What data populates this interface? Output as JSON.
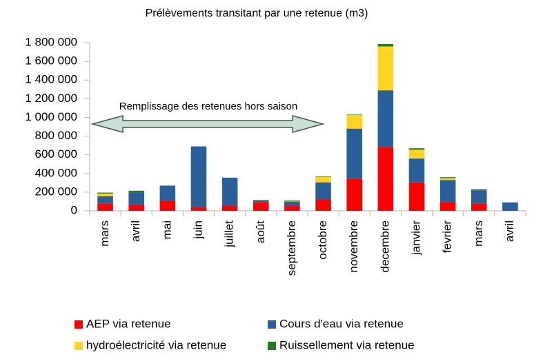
{
  "chart_data": {
    "type": "bar",
    "stacked": true,
    "title": "Prélèvements transitant par une retenue (m3)",
    "annotation": "Remplissage des retenues hors saison",
    "categories": [
      "mars",
      "avril",
      "mai",
      "juin",
      "juillet",
      "août",
      "septembre",
      "octobre",
      "novembre",
      "decembre",
      "janvier",
      "fevrier",
      "mars",
      "avril"
    ],
    "series": [
      {
        "name": "AEP via retenue",
        "color": "#ff0000",
        "values": [
          80000,
          65000,
          110000,
          40000,
          55000,
          90000,
          55000,
          125000,
          345000,
          680000,
          305000,
          95000,
          80000,
          0
        ]
      },
      {
        "name": "Cours d'eau via retenue",
        "color": "#2a6099",
        "values": [
          75000,
          130000,
          160000,
          650000,
          300000,
          20000,
          45000,
          180000,
          535000,
          610000,
          255000,
          235000,
          140000,
          90000
        ]
      },
      {
        "name": "hydroélectricité via retenue",
        "color": "#ffd320",
        "values": [
          30000,
          0,
          0,
          0,
          0,
          0,
          10000,
          60000,
          145000,
          470000,
          95000,
          20000,
          0,
          0
        ]
      },
      {
        "name": "Ruissellement via retenue",
        "color": "#1e7b1e",
        "values": [
          10000,
          20000,
          0,
          0,
          0,
          5000,
          5000,
          5000,
          5000,
          25000,
          15000,
          10000,
          10000,
          0
        ]
      }
    ],
    "ylim": [
      0,
      1800000
    ],
    "yticks": [
      0,
      {
        "value": 200000,
        "label": "200 000"
      },
      {
        "value": 400000,
        "label": "400 000"
      },
      {
        "value": 600000,
        "label": "600 000"
      },
      {
        "value": 800000,
        "label": "800 000"
      },
      {
        "value": 1000000,
        "label": "1 000 000"
      },
      {
        "value": 1200000,
        "label": "1 200 000"
      },
      {
        "value": 1400000,
        "label": "1 400 000"
      },
      {
        "value": 1600000,
        "label": "1 600 000"
      },
      {
        "value": 1800000,
        "label": "1 800 000"
      }
    ],
    "grid": false,
    "legend": "bottom"
  }
}
